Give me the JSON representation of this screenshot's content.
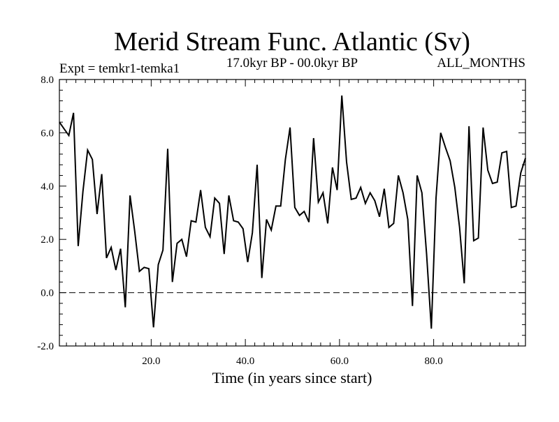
{
  "colors": {
    "line": "#000000",
    "background": "#ffffff",
    "zero_line": "#000000"
  },
  "chart_data": {
    "type": "line",
    "title": "Merid Stream Func. Atlantic (Sv)",
    "subtitle_left": "Expt = temkr1-temka1",
    "subtitle_center": "17.0kyr BP - 00.0kyr BP",
    "subtitle_right": "ALL_MONTHS",
    "xlabel": "Time (in years since start)",
    "ylabel": "",
    "xlim": [
      0.5,
      99.5
    ],
    "ylim": [
      -2.0,
      8.0
    ],
    "x_major_ticks": [
      20,
      40,
      60,
      80
    ],
    "x_tick_labels": [
      "20.0",
      "40.0",
      "60.0",
      "80.0"
    ],
    "x_minor_step": 2,
    "y_major_ticks": [
      -2,
      0,
      2,
      4,
      6,
      8
    ],
    "y_tick_labels": [
      "-2.0",
      "0.0",
      "2.0",
      "4.0",
      "6.0",
      "8.0"
    ],
    "y_minor_step": 0.4,
    "reference_line": {
      "y": 0.0,
      "style": "dashed"
    },
    "x": [
      0.5,
      1.5,
      2.5,
      3.5,
      4.5,
      5.5,
      6.5,
      7.5,
      8.5,
      9.5,
      10.5,
      11.5,
      12.5,
      13.5,
      14.5,
      15.5,
      16.5,
      17.5,
      18.5,
      19.5,
      20.5,
      21.5,
      22.5,
      23.5,
      24.5,
      25.5,
      26.5,
      27.5,
      28.5,
      29.5,
      30.5,
      31.5,
      32.5,
      33.5,
      34.5,
      35.5,
      36.5,
      37.5,
      38.5,
      39.5,
      40.5,
      41.5,
      42.5,
      43.5,
      44.5,
      45.5,
      46.5,
      47.5,
      48.5,
      49.5,
      50.5,
      51.5,
      52.5,
      53.5,
      54.5,
      55.5,
      56.5,
      57.5,
      58.5,
      59.5,
      60.5,
      61.5,
      62.5,
      63.5,
      64.5,
      65.5,
      66.5,
      67.5,
      68.5,
      69.5,
      70.5,
      71.5,
      72.5,
      73.5,
      74.5,
      75.5,
      76.5,
      77.5,
      78.5,
      79.5,
      80.5,
      81.5,
      82.5,
      83.5,
      84.5,
      85.5,
      86.5,
      87.5,
      88.5,
      89.5,
      90.5,
      91.5,
      92.5,
      93.5,
      94.5,
      95.5,
      96.5,
      97.5,
      98.5,
      99.5
    ],
    "series": [
      {
        "name": "Merid Stream Func. Atlantic",
        "values": [
          6.4,
          6.15,
          5.9,
          6.75,
          1.75,
          3.8,
          5.35,
          5.0,
          2.95,
          4.45,
          1.3,
          1.7,
          0.85,
          1.65,
          -0.55,
          3.65,
          2.3,
          0.8,
          0.95,
          0.9,
          -1.3,
          1.05,
          1.6,
          5.4,
          0.4,
          1.85,
          2.0,
          1.35,
          2.7,
          2.65,
          3.85,
          2.45,
          2.1,
          3.55,
          3.35,
          1.45,
          3.65,
          2.7,
          2.65,
          2.4,
          1.15,
          2.25,
          4.8,
          0.55,
          2.75,
          2.35,
          3.25,
          3.25,
          5.0,
          6.2,
          3.2,
          2.9,
          3.05,
          2.65,
          5.8,
          3.4,
          3.75,
          2.6,
          4.7,
          3.85,
          7.4,
          4.9,
          3.5,
          3.55,
          3.95,
          3.35,
          3.75,
          3.45,
          2.85,
          3.9,
          2.45,
          2.6,
          4.4,
          3.75,
          2.75,
          -0.5,
          4.4,
          3.75,
          1.45,
          -1.35,
          3.55,
          6.0,
          5.45,
          4.95,
          3.95,
          2.45,
          0.35,
          6.25,
          1.95,
          2.05,
          6.2,
          4.6,
          4.1,
          4.15,
          5.25,
          5.3,
          3.2,
          3.25,
          4.5,
          5.05
        ]
      }
    ]
  }
}
